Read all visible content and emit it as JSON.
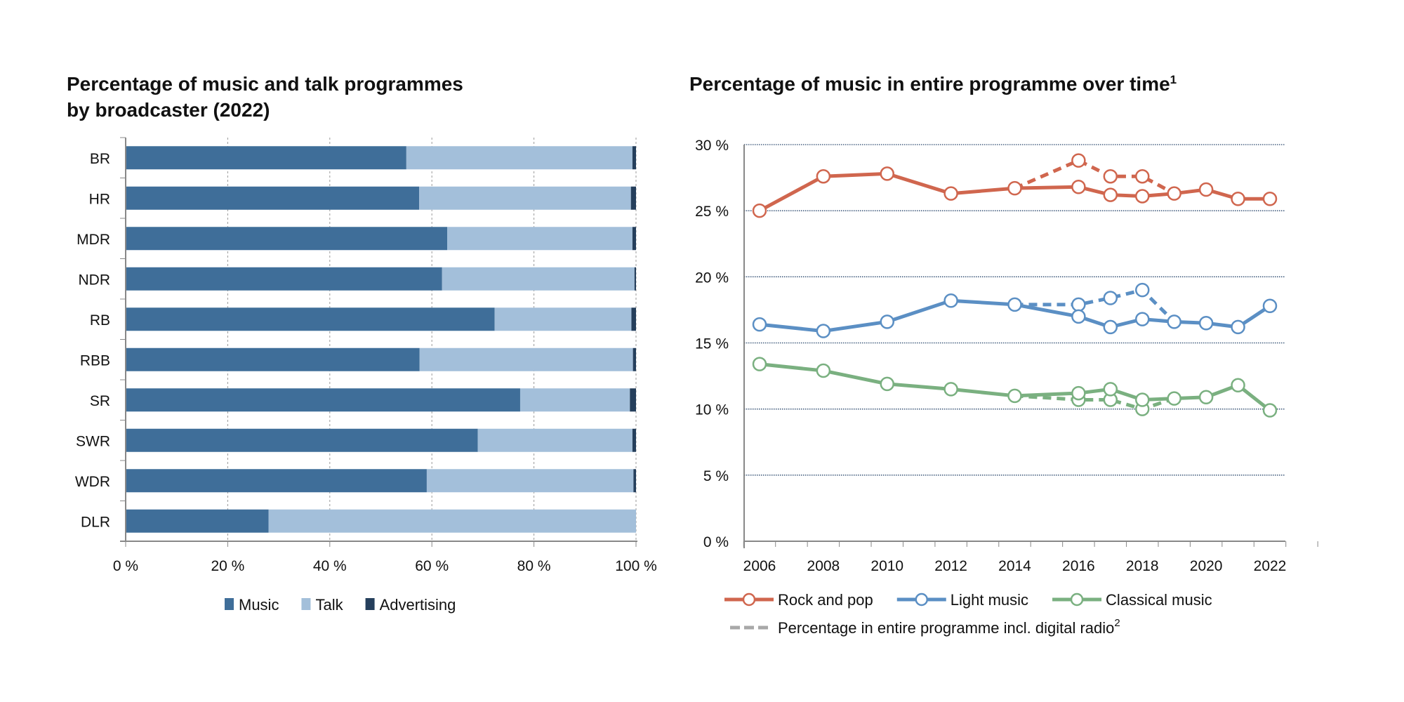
{
  "chart_data": [
    {
      "type": "bar",
      "orientation": "horizontal",
      "stacked": true,
      "title": [
        "Percentage of music and talk programmes",
        "by broadcaster (2022)"
      ],
      "categories": [
        "BR",
        "HR",
        "MDR",
        "NDR",
        "RB",
        "RBB",
        "SR",
        "SWR",
        "WDR",
        "DLR"
      ],
      "series": [
        {
          "name": "Music",
          "color": "#3f6e99",
          "values": [
            55,
            57.5,
            63,
            62,
            72.3,
            57.6,
            77.3,
            69,
            59,
            28
          ]
        },
        {
          "name": "Talk",
          "color": "#a3bfda",
          "values": [
            44.3,
            41.5,
            36.3,
            37.7,
            26.8,
            41.8,
            21.5,
            30.3,
            40.5,
            72
          ]
        },
        {
          "name": "Advertising",
          "color": "#253f5c",
          "values": [
            0.7,
            1,
            0.7,
            0.3,
            0.9,
            0.6,
            1.2,
            0.7,
            0.5,
            0
          ]
        }
      ],
      "xlim": [
        0,
        100
      ],
      "xticks": [
        "0 %",
        "20 %",
        "40 %",
        "60 %",
        "80 %",
        "100 %"
      ],
      "grid": "vertical dashed",
      "legend": "bottom"
    },
    {
      "type": "line",
      "title": "Percentage of music in entire programme over time",
      "title_sup": "1",
      "x": [
        2006,
        2008,
        2010,
        2012,
        2014,
        2016,
        2017,
        2018,
        2019,
        2020,
        2021,
        2022
      ],
      "xticks": [
        "2006",
        "2008",
        "2010",
        "2012",
        "2014",
        "2016",
        "2018",
        "2020",
        "2022"
      ],
      "ylim": [
        0,
        30
      ],
      "yticks": [
        "0 %",
        "5 %",
        "10 %",
        "15 %",
        "20 %",
        "25 %",
        "30 %"
      ],
      "grid": "horizontal dotted",
      "legend": "bottom",
      "series": [
        {
          "name": "Rock and pop",
          "color": "#d0664e",
          "values": [
            25.0,
            27.6,
            27.8,
            26.3,
            26.7,
            26.8,
            26.2,
            26.1,
            26.3,
            26.6,
            25.9,
            25.9
          ],
          "dashed": {
            "x": [
              2014,
              2016,
              2017,
              2018,
              2019
            ],
            "values": [
              26.7,
              28.8,
              27.6,
              27.6,
              26.3
            ]
          }
        },
        {
          "name": "Light music",
          "color": "#5b8fc4",
          "values": [
            16.4,
            15.9,
            16.6,
            18.2,
            17.9,
            17.0,
            16.2,
            16.8,
            16.6,
            16.5,
            16.2,
            17.8
          ],
          "dashed": {
            "x": [
              2014,
              2016,
              2017,
              2018,
              2019
            ],
            "values": [
              17.9,
              17.9,
              18.4,
              19.0,
              16.6
            ]
          }
        },
        {
          "name": "Classical music",
          "color": "#7ab080",
          "values": [
            13.4,
            12.9,
            11.9,
            11.5,
            11.0,
            11.2,
            11.5,
            10.7,
            10.8,
            10.9,
            11.8,
            9.9
          ],
          "dashed": {
            "x": [
              2014,
              2016,
              2017,
              2018,
              2019
            ],
            "values": [
              11.0,
              10.7,
              10.7,
              10.0,
              10.8
            ]
          }
        }
      ],
      "dashed_legend": "Percentage in entire programme incl. digital radio",
      "dashed_legend_sup": "2",
      "dashed_legend_color": "#a8a8a8"
    }
  ]
}
